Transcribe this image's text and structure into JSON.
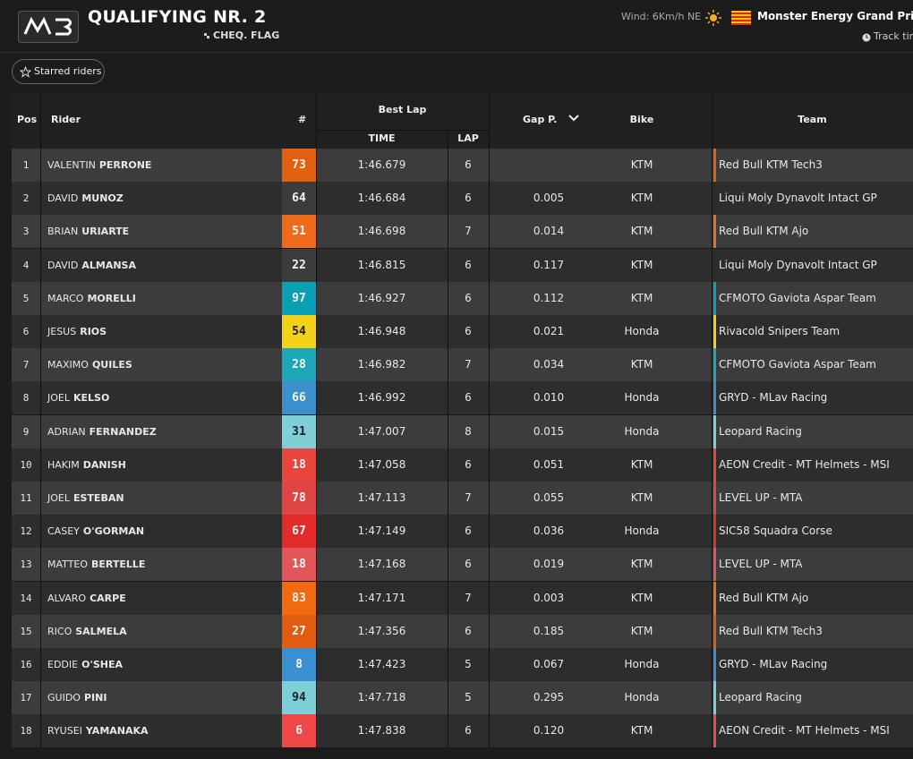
{
  "header": {
    "title": "QUALIFYING NR. 2",
    "subtitle": "CHEQ. FLAG",
    "wind": "Wind: 6Km/h NE",
    "event": "Monster Energy Grand Prix o",
    "track": "Track tim"
  },
  "starred_button": "Starred riders",
  "table": {
    "columns": {
      "pos": "Pos",
      "rider": "Rider",
      "number": "#",
      "best_lap": "Best Lap",
      "time": "TIME",
      "lap": "LAP",
      "gap": "Gap P.",
      "bike": "Bike",
      "team": "Team"
    },
    "rows": [
      {
        "pos": 1,
        "first": "VALENTIN",
        "last": "PERRONE",
        "number": 73,
        "color": "#e0600f",
        "time": "1:46.679",
        "lap": 6,
        "gap": null,
        "bike": "KTM",
        "team": "Red Bull KTM Tech3"
      },
      {
        "pos": 2,
        "first": "DAVID",
        "last": "MUNOZ",
        "number": 64,
        "color": "#3c3c3c",
        "time": "1:46.684",
        "lap": 6,
        "gap": "0.005",
        "bike": "KTM",
        "team": "Liqui Moly Dynavolt Intact GP"
      },
      {
        "pos": 3,
        "first": "BRIAN",
        "last": "URIARTE",
        "number": 51,
        "color": "#ef6a1a",
        "time": "1:46.698",
        "lap": 7,
        "gap": "0.014",
        "bike": "KTM",
        "team": "Red Bull KTM Ajo"
      },
      {
        "pos": 4,
        "first": "DAVID",
        "last": "ALMANSA",
        "number": 22,
        "color": "#3c3c3c",
        "time": "1:46.815",
        "lap": 6,
        "gap": "0.117",
        "bike": "KTM",
        "team": "Liqui Moly Dynavolt Intact GP"
      },
      {
        "pos": 5,
        "first": "MARCO",
        "last": "MORELLI",
        "number": 97,
        "color": "#0aa0b4",
        "time": "1:46.927",
        "lap": 6,
        "gap": "0.112",
        "bike": "KTM",
        "team": "CFMOTO Gaviota Aspar Team"
      },
      {
        "pos": 6,
        "first": "JESUS",
        "last": "RIOS",
        "number": 54,
        "color": "#f3d21a",
        "time": "1:46.948",
        "lap": 6,
        "gap": "0.021",
        "bike": "Honda",
        "team": "Rivacold Snipers Team"
      },
      {
        "pos": 7,
        "first": "MAXIMO",
        "last": "QUILES",
        "number": 28,
        "color": "#1ea6b9",
        "time": "1:46.982",
        "lap": 7,
        "gap": "0.034",
        "bike": "KTM",
        "team": "CFMOTO Gaviota Aspar Team"
      },
      {
        "pos": 8,
        "first": "JOEL",
        "last": "KELSO",
        "number": 66,
        "color": "#3b8fcb",
        "time": "1:46.992",
        "lap": 6,
        "gap": "0.010",
        "bike": "Honda",
        "team": "GRYD - MLav Racing"
      },
      {
        "pos": 9,
        "first": "ADRIAN",
        "last": "FERNANDEZ",
        "number": 31,
        "color": "#7fcfd6",
        "time": "1:47.007",
        "lap": 8,
        "gap": "0.015",
        "bike": "Honda",
        "team": "Leopard Racing"
      },
      {
        "pos": 10,
        "first": "HAKIM",
        "last": "DANISH",
        "number": 18,
        "color": "#e8453c",
        "time": "1:47.058",
        "lap": 6,
        "gap": "0.051",
        "bike": "KTM",
        "team": "AEON Credit - MT Helmets - MSI"
      },
      {
        "pos": 11,
        "first": "JOEL",
        "last": "ESTEBAN",
        "number": 78,
        "color": "#e04545",
        "time": "1:47.113",
        "lap": 7,
        "gap": "0.055",
        "bike": "KTM",
        "team": "LEVEL UP - MTA"
      },
      {
        "pos": 12,
        "first": "CASEY",
        "last": "O'GORMAN",
        "number": 67,
        "color": "#e32b2b",
        "time": "1:47.149",
        "lap": 6,
        "gap": "0.036",
        "bike": "Honda",
        "team": "SIC58 Squadra Corse"
      },
      {
        "pos": 13,
        "first": "MATTEO",
        "last": "BERTELLE",
        "number": 18,
        "color": "#e2555a",
        "time": "1:47.168",
        "lap": 6,
        "gap": "0.019",
        "bike": "KTM",
        "team": "LEVEL UP - MTA"
      },
      {
        "pos": 14,
        "first": "ALVARO",
        "last": "CARPE",
        "number": 83,
        "color": "#f06a10",
        "time": "1:47.171",
        "lap": 7,
        "gap": "0.003",
        "bike": "KTM",
        "team": "Red Bull KTM Ajo"
      },
      {
        "pos": 15,
        "first": "RICO",
        "last": "SALMELA",
        "number": 27,
        "color": "#e25c0f",
        "time": "1:47.356",
        "lap": 6,
        "gap": "0.185",
        "bike": "KTM",
        "team": "Red Bull KTM Tech3"
      },
      {
        "pos": 16,
        "first": "EDDIE",
        "last": "O'SHEA",
        "number": 8,
        "color": "#3a8fd0",
        "time": "1:47.423",
        "lap": 5,
        "gap": "0.067",
        "bike": "Honda",
        "team": "GRYD - MLav Racing"
      },
      {
        "pos": 17,
        "first": "GUIDO",
        "last": "PINI",
        "number": 94,
        "color": "#7ccfd8",
        "time": "1:47.718",
        "lap": 5,
        "gap": "0.295",
        "bike": "Honda",
        "team": "Leopard Racing"
      },
      {
        "pos": 18,
        "first": "RYUSEI",
        "last": "YAMANAKA",
        "number": 6,
        "color": "#f04848",
        "time": "1:47.838",
        "lap": 6,
        "gap": "0.120",
        "bike": "KTM",
        "team": "AEON Credit - MT Helmets - MSI"
      }
    ]
  }
}
